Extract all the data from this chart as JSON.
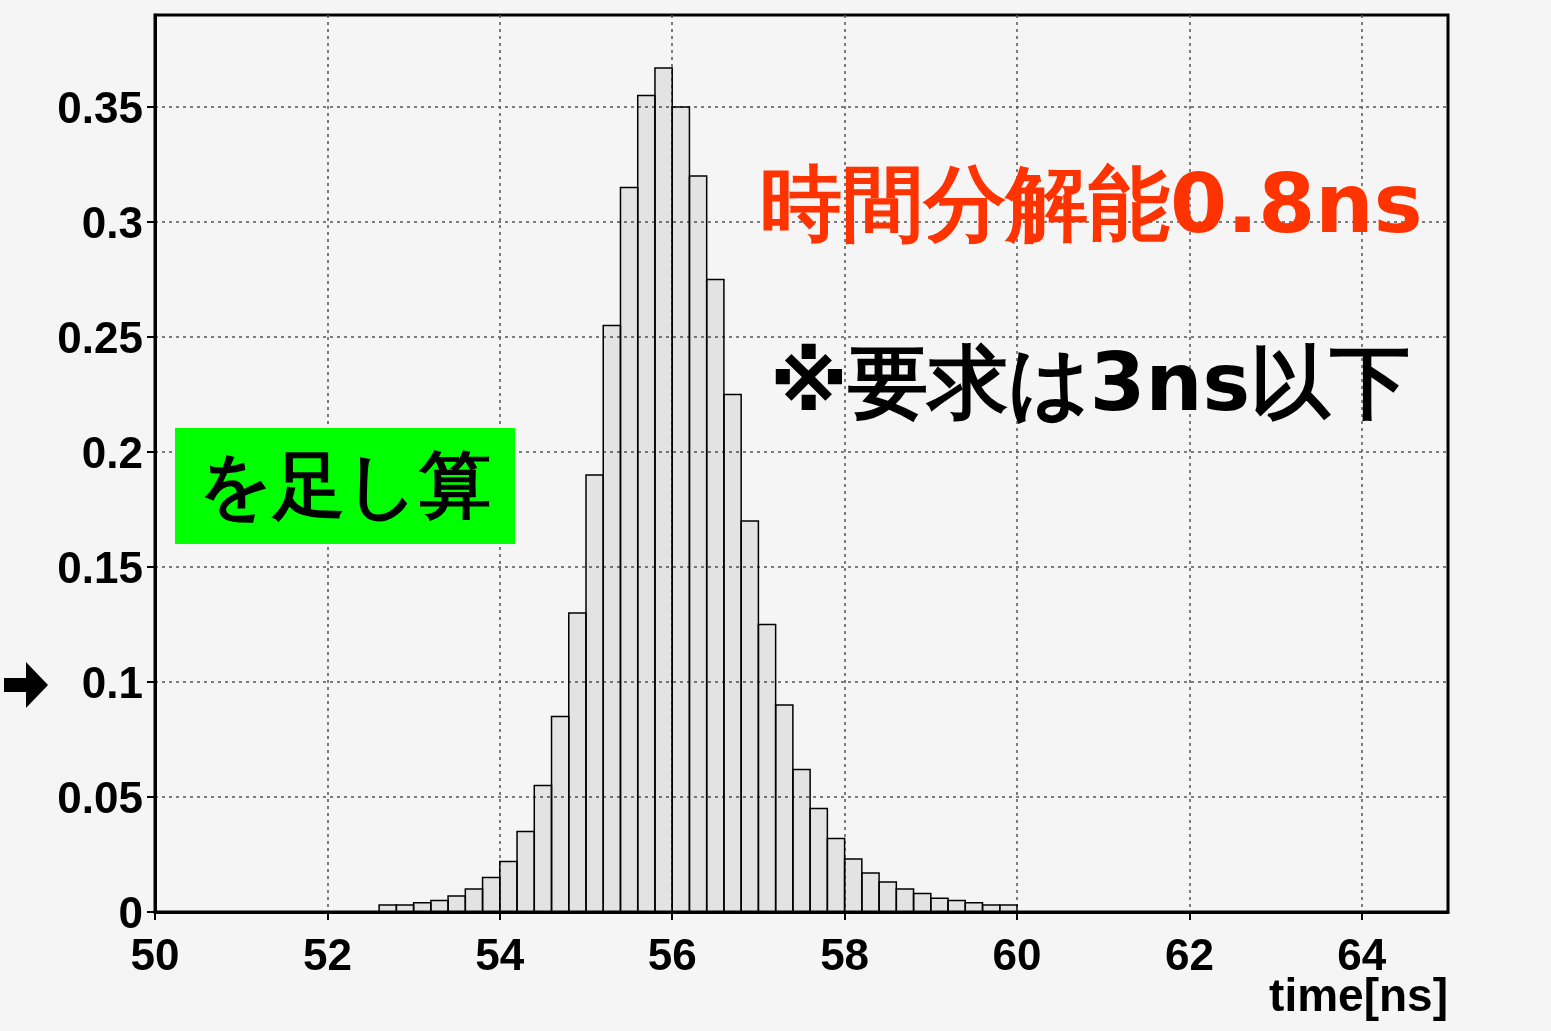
{
  "chart_data": {
    "type": "histogram",
    "xlabel": "time[ns]",
    "bins": [
      50.0,
      50.2,
      50.4,
      50.6,
      50.8,
      51.0,
      51.2,
      51.4,
      51.6,
      51.8,
      52.0,
      52.2,
      52.4,
      52.6,
      52.8,
      53.0,
      53.2,
      53.4,
      53.6,
      53.8,
      54.0,
      54.2,
      54.4,
      54.6,
      54.8,
      55.0,
      55.2,
      55.4,
      55.6,
      55.8,
      56.0,
      56.2,
      56.4,
      56.6,
      56.8,
      57.0,
      57.2,
      57.4,
      57.6,
      57.8,
      58.0,
      58.2,
      58.4,
      58.6,
      58.8,
      59.0,
      59.2,
      59.4,
      59.6,
      59.8,
      60.0,
      60.2,
      60.4,
      60.6,
      60.8,
      61.0,
      61.2,
      61.4,
      61.6,
      61.8,
      62.0,
      62.2,
      62.4,
      62.6,
      62.8,
      63.0,
      63.2,
      63.4,
      63.6,
      63.8,
      64.0,
      64.2,
      64.4,
      64.6,
      64.8,
      65.0
    ],
    "values": [
      0,
      0,
      0,
      0,
      0,
      0,
      0,
      0,
      0,
      0,
      0,
      0,
      0,
      0.003,
      0.003,
      0.004,
      0.005,
      0.007,
      0.01,
      0.015,
      0.022,
      0.035,
      0.055,
      0.085,
      0.13,
      0.19,
      0.255,
      0.315,
      0.355,
      0.367,
      0.35,
      0.32,
      0.275,
      0.225,
      0.17,
      0.125,
      0.09,
      0.062,
      0.045,
      0.032,
      0.023,
      0.017,
      0.013,
      0.01,
      0.008,
      0.006,
      0.005,
      0.004,
      0.003,
      0.003,
      0,
      0,
      0,
      0,
      0,
      0,
      0,
      0,
      0,
      0,
      0,
      0,
      0,
      0,
      0,
      0,
      0,
      0,
      0,
      0,
      0,
      0,
      0,
      0,
      0
    ],
    "color": "#000000",
    "xlim": [
      50,
      65
    ],
    "xticks": [
      50,
      52,
      54,
      56,
      58,
      60,
      62,
      64
    ],
    "ylim": [
      0,
      0.39
    ],
    "yticks": [
      0,
      0.05,
      0.1,
      0.15,
      0.2,
      0.25,
      0.3,
      0.35
    ],
    "grid": true,
    "annotations": [
      "時間分解能0.8ns",
      "※要求は3ns以下",
      "を足し算"
    ]
  }
}
